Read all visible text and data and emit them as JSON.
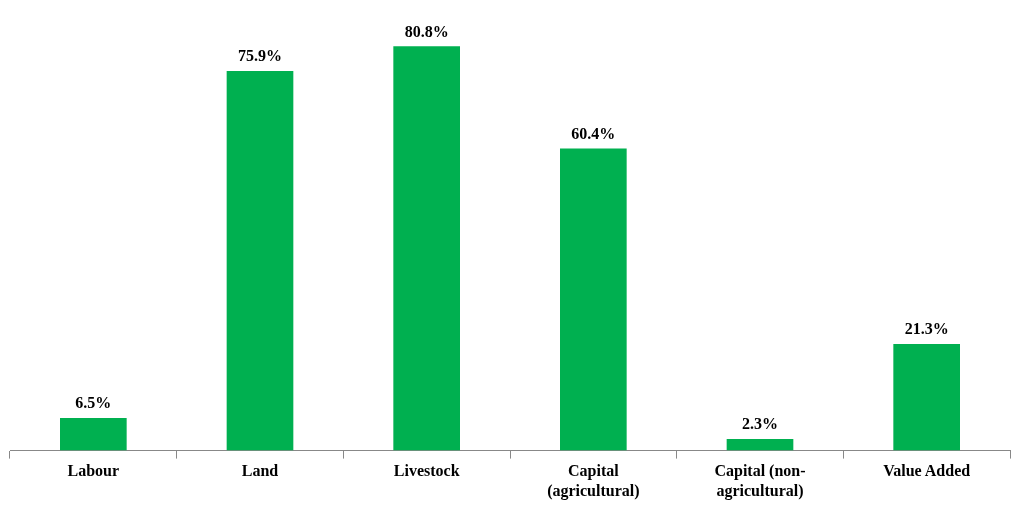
{
  "chart_data": {
    "type": "bar",
    "categories": [
      "Labour",
      "Land",
      "Livestock",
      "Capital (agricultural)",
      "Capital (non-agricultural)",
      "Value Added"
    ],
    "values": [
      6.5,
      75.9,
      80.8,
      60.4,
      2.3,
      21.3
    ],
    "value_labels": [
      "6.5%",
      "75.9%",
      "80.8%",
      "60.4%",
      "2.3%",
      "21.3%"
    ],
    "color": "#00b050",
    "grid": false,
    "legend": false,
    "tick_labels": "x"
  }
}
